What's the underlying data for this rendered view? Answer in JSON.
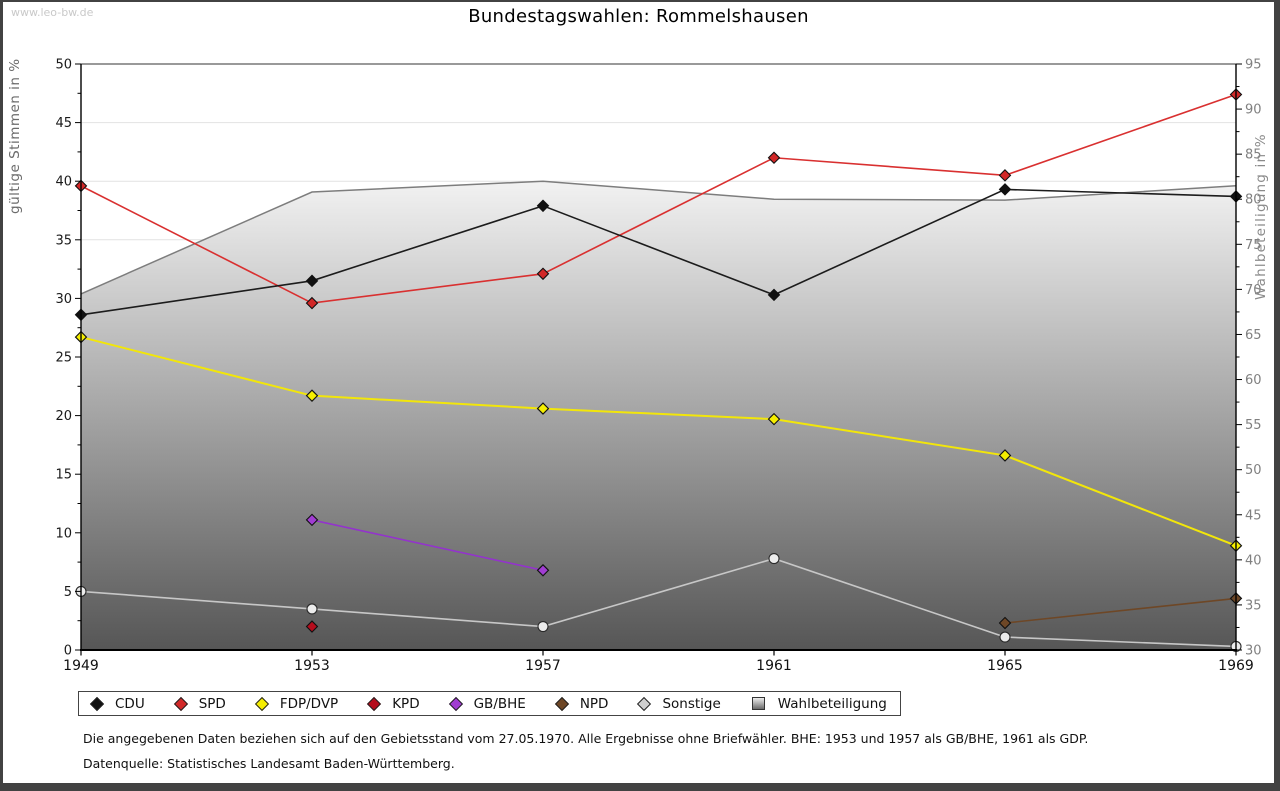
{
  "watermark": "www.leo-bw.de",
  "title": "Bundestagswahlen: Rommelshausen",
  "chart_data": {
    "type": "line",
    "x": [
      1949,
      1953,
      1957,
      1961,
      1965,
      1969
    ],
    "left_axis": {
      "label": "gültige Stimmen in %",
      "min": 0,
      "max": 50,
      "major_step": 5,
      "minor_step": 2.5
    },
    "right_axis": {
      "label": "Wahlbeteiligung in %",
      "min": 30,
      "max": 95,
      "major_step": 5,
      "minor_step": 2.5
    },
    "grid": true,
    "legend_position": "bottom",
    "series": [
      {
        "name": "Wahlbeteiligung",
        "axis": "right",
        "kind": "area",
        "marker": "square",
        "line_color": "#7d7d7d",
        "fill_top": "#f2f2f2",
        "fill_bottom": "#565656",
        "values": [
          69.5,
          80.8,
          82.0,
          80.0,
          79.9,
          81.5
        ]
      },
      {
        "name": "Sonstige",
        "axis": "left",
        "kind": "line",
        "marker": "circle",
        "line_color": "#c7c7c7",
        "marker_fill": "#ececec",
        "values": [
          5.0,
          3.5,
          2.0,
          7.8,
          1.1,
          0.3
        ]
      },
      {
        "name": "FDP/DVP",
        "axis": "left",
        "kind": "line",
        "marker": "diamond",
        "line_color": "#f2e60a",
        "marker_fill": "#f5ee00",
        "values": [
          26.7,
          21.7,
          20.6,
          19.7,
          16.6,
          8.9
        ]
      },
      {
        "name": "GB/BHE",
        "axis": "left",
        "kind": "line",
        "marker": "diamond",
        "line_color": "#9333cc",
        "marker_fill": "#a13dd2",
        "values": [
          null,
          11.1,
          6.8,
          null,
          null,
          null
        ]
      },
      {
        "name": "NPD",
        "axis": "left",
        "kind": "line",
        "marker": "diamond",
        "line_color": "#6e4726",
        "marker_fill": "#6e4726",
        "values": [
          null,
          null,
          null,
          null,
          2.3,
          4.4
        ]
      },
      {
        "name": "KPD",
        "axis": "left",
        "kind": "line",
        "marker": "diamond",
        "line_color": "#b50d1d",
        "marker_fill": "#b50d1d",
        "values": [
          null,
          2.0,
          null,
          null,
          null,
          null
        ]
      },
      {
        "name": "SPD",
        "axis": "left",
        "kind": "line",
        "marker": "diamond",
        "line_color": "#d93030",
        "marker_fill": "#d22828",
        "values": [
          39.6,
          29.6,
          32.1,
          42.0,
          40.5,
          47.4
        ]
      },
      {
        "name": "CDU",
        "axis": "left",
        "kind": "line",
        "marker": "diamond",
        "line_color": "#1c1c1c",
        "marker_fill": "#111111",
        "values": [
          28.6,
          31.5,
          37.9,
          30.3,
          39.3,
          38.7
        ]
      }
    ],
    "legend_order": [
      "CDU",
      "SPD",
      "FDP/DVP",
      "KPD",
      "GB/BHE",
      "NPD",
      "Sonstige",
      "Wahlbeteiligung"
    ]
  },
  "notes": {
    "line1": "Die angegebenen Daten beziehen sich auf den Gebietsstand vom 27.05.1970. Alle Ergebnisse ohne Briefwähler. BHE: 1953 und 1957 als GB/BHE, 1961 als GDP.",
    "line2": "Datenquelle: Statistisches Landesamt Baden-Württemberg."
  }
}
